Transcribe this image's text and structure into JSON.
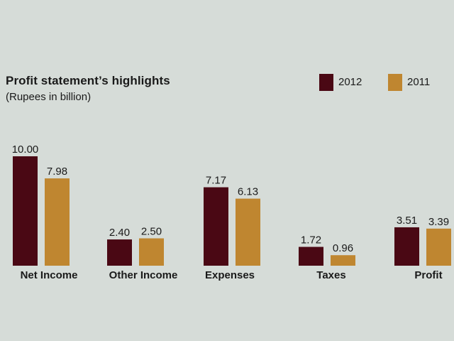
{
  "chart_data": {
    "type": "bar",
    "title": "Profit statement’s  highlights",
    "subtitle": "(Rupees in billion)",
    "categories": [
      "Net Income",
      "Other Income",
      "Expenses",
      "Taxes",
      "Profit"
    ],
    "series": [
      {
        "name": "2012",
        "color": "#4a0814",
        "values": [
          10.0,
          2.4,
          7.17,
          1.72,
          3.51
        ]
      },
      {
        "name": "2011",
        "color": "#bf8630",
        "values": [
          7.98,
          2.5,
          6.13,
          0.96,
          3.39
        ]
      }
    ],
    "value_labels": [
      [
        "10.00",
        "2.40",
        "7.17",
        "1.72",
        "3.51"
      ],
      [
        "7.98",
        "2.50",
        "6.13",
        "0.96",
        "3.39"
      ]
    ],
    "ylim": [
      0,
      10
    ],
    "grid": false,
    "legend": "top-right"
  }
}
